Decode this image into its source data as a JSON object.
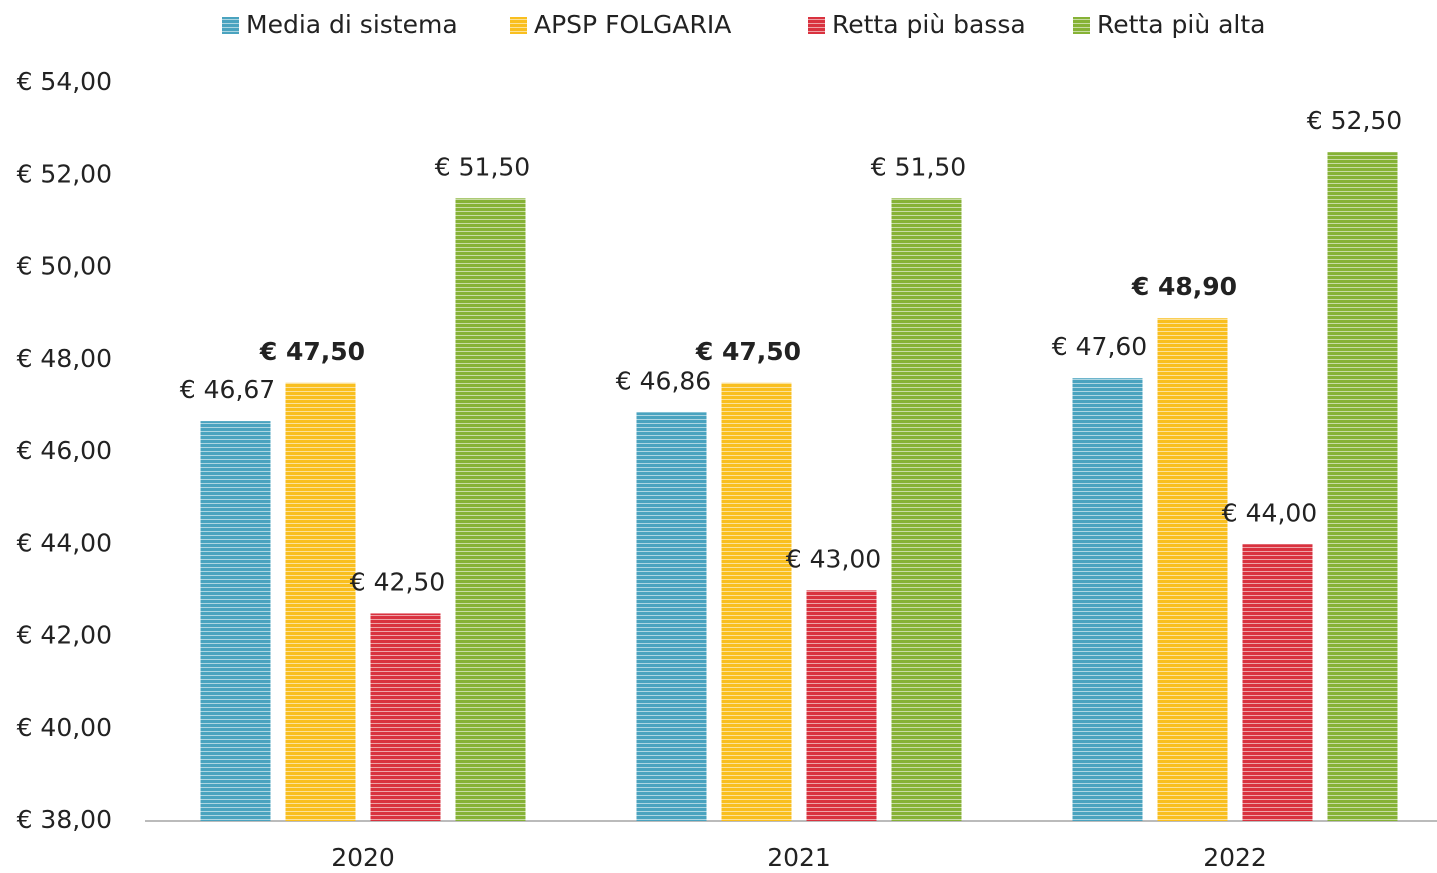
{
  "chart_data": {
    "type": "bar",
    "categories": [
      "2020",
      "2021",
      "2022"
    ],
    "series": [
      {
        "name": "Media di sistema",
        "color": "#4aa3bf",
        "values": [
          46.67,
          46.86,
          47.6
        ],
        "value_labels": [
          "€ 46,67",
          "€ 46,86",
          "€ 47,60"
        ]
      },
      {
        "name": "APSP FOLGARIA",
        "color": "#f9bf1f",
        "values": [
          47.5,
          47.5,
          48.9
        ],
        "value_labels": [
          "€ 47,50",
          "€ 47,50",
          "€ 48,90"
        ],
        "label_bold": true
      },
      {
        "name": "Retta più bassa",
        "color": "#d9323f",
        "values": [
          42.5,
          43,
          44
        ],
        "value_labels": [
          "€ 42,50",
          "€ 43,00",
          "€ 44,00"
        ]
      },
      {
        "name": "Retta più alta",
        "color": "#86b236",
        "values": [
          51.5,
          51.5,
          52.5
        ],
        "value_labels": [
          "€ 51,50",
          "€ 51,50",
          "€ 52,50"
        ]
      }
    ],
    "ylim": [
      38,
      54
    ],
    "yticks": [
      {
        "value": 38,
        "label": "€ 38,00"
      },
      {
        "value": 40,
        "label": "€ 40,00"
      },
      {
        "value": 42,
        "label": "€ 42,00"
      },
      {
        "value": 44,
        "label": "€ 44,00"
      },
      {
        "value": 46,
        "label": "€ 46,00"
      },
      {
        "value": 48,
        "label": "€ 48,00"
      },
      {
        "value": 50,
        "label": "€ 50,00"
      },
      {
        "value": 52,
        "label": "€ 52,00"
      },
      {
        "value": 54,
        "label": "€ 54,00"
      }
    ],
    "legend": "top"
  }
}
